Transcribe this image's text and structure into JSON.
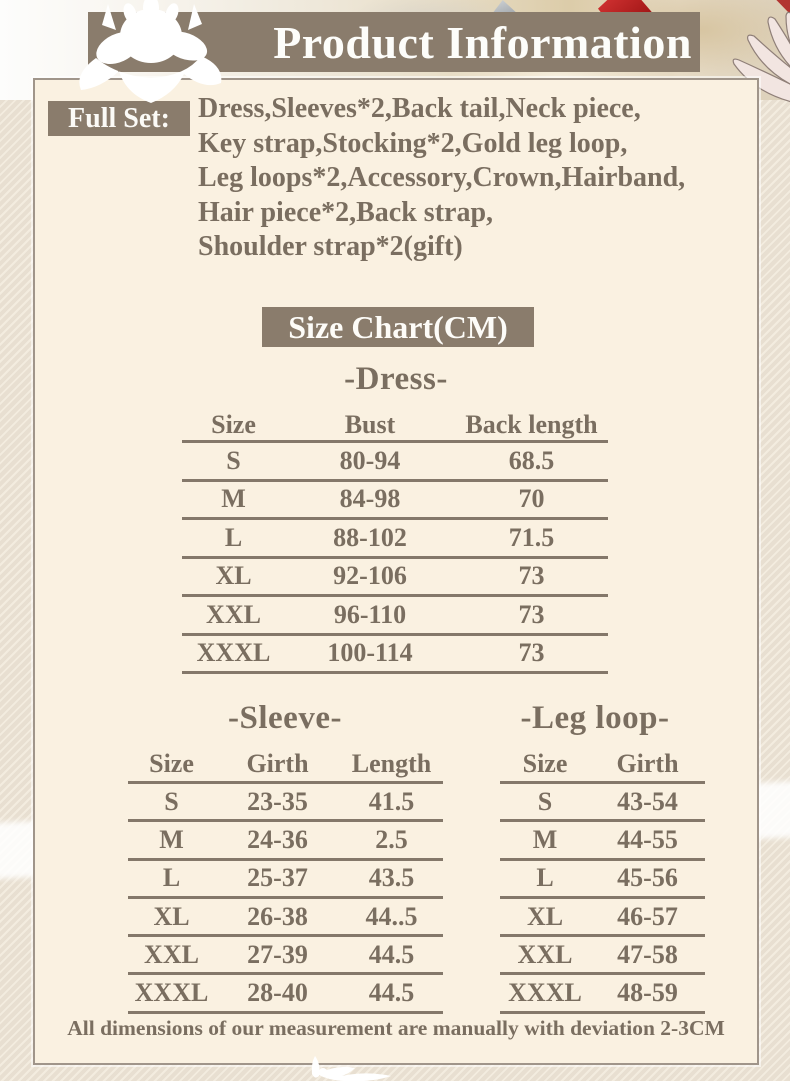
{
  "header": {
    "title": "Product Information"
  },
  "full_set": {
    "label": "Full Set:",
    "lines": [
      "Dress,Sleeves*2,Back tail,Neck piece,",
      "Key strap,Stocking*2,Gold leg loop,",
      "Leg loops*2,Accessory,Crown,Hairband,",
      "Hair piece*2,Back strap,",
      "Shoulder strap*2(gift)"
    ]
  },
  "size_chart": {
    "heading": "Size Chart(CM)"
  },
  "tables": {
    "dress": {
      "title": "-Dress-",
      "headers": [
        "Size",
        "Bust",
        "Back length"
      ],
      "rows": [
        [
          "S",
          "80-94",
          "68.5"
        ],
        [
          "M",
          "84-98",
          "70"
        ],
        [
          "L",
          "88-102",
          "71.5"
        ],
        [
          "XL",
          "92-106",
          "73"
        ],
        [
          "XXL",
          "96-110",
          "73"
        ],
        [
          "XXXL",
          "100-114",
          "73"
        ]
      ]
    },
    "sleeve": {
      "title": "-Sleeve-",
      "headers": [
        "Size",
        "Girth",
        "Length"
      ],
      "rows": [
        [
          "S",
          "23-35",
          "41.5"
        ],
        [
          "M",
          "24-36",
          "2.5"
        ],
        [
          "L",
          "25-37",
          "43.5"
        ],
        [
          "XL",
          "26-38",
          "44..5"
        ],
        [
          "XXL",
          "27-39",
          "44.5"
        ],
        [
          "XXXL",
          "28-40",
          "44.5"
        ]
      ]
    },
    "leg_loop": {
      "title": "-Leg loop-",
      "headers": [
        "Size",
        "Girth"
      ],
      "rows": [
        [
          "S",
          "43-54"
        ],
        [
          "M",
          "44-55"
        ],
        [
          "L",
          "45-56"
        ],
        [
          "XL",
          "46-57"
        ],
        [
          "XXL",
          "47-58"
        ],
        [
          "XXXL",
          "48-59"
        ]
      ]
    }
  },
  "footer": {
    "note": "All dimensions of our measurement are manually with deviation 2-3CM"
  },
  "decor_icons": [
    "white-flower-silhouette-icon",
    "sword-tip-icon",
    "red-ribbon-icon",
    "wing-feather-icon",
    "bottom-flower-icon"
  ],
  "colors": {
    "bar_brown": "#8a7c6c",
    "text_brown": "#7a6e60",
    "panel_cream": "#faf1e1",
    "table_line": "#84786a",
    "stripe_base": "#e8dfd1",
    "ribbon_red": "#a31818"
  }
}
